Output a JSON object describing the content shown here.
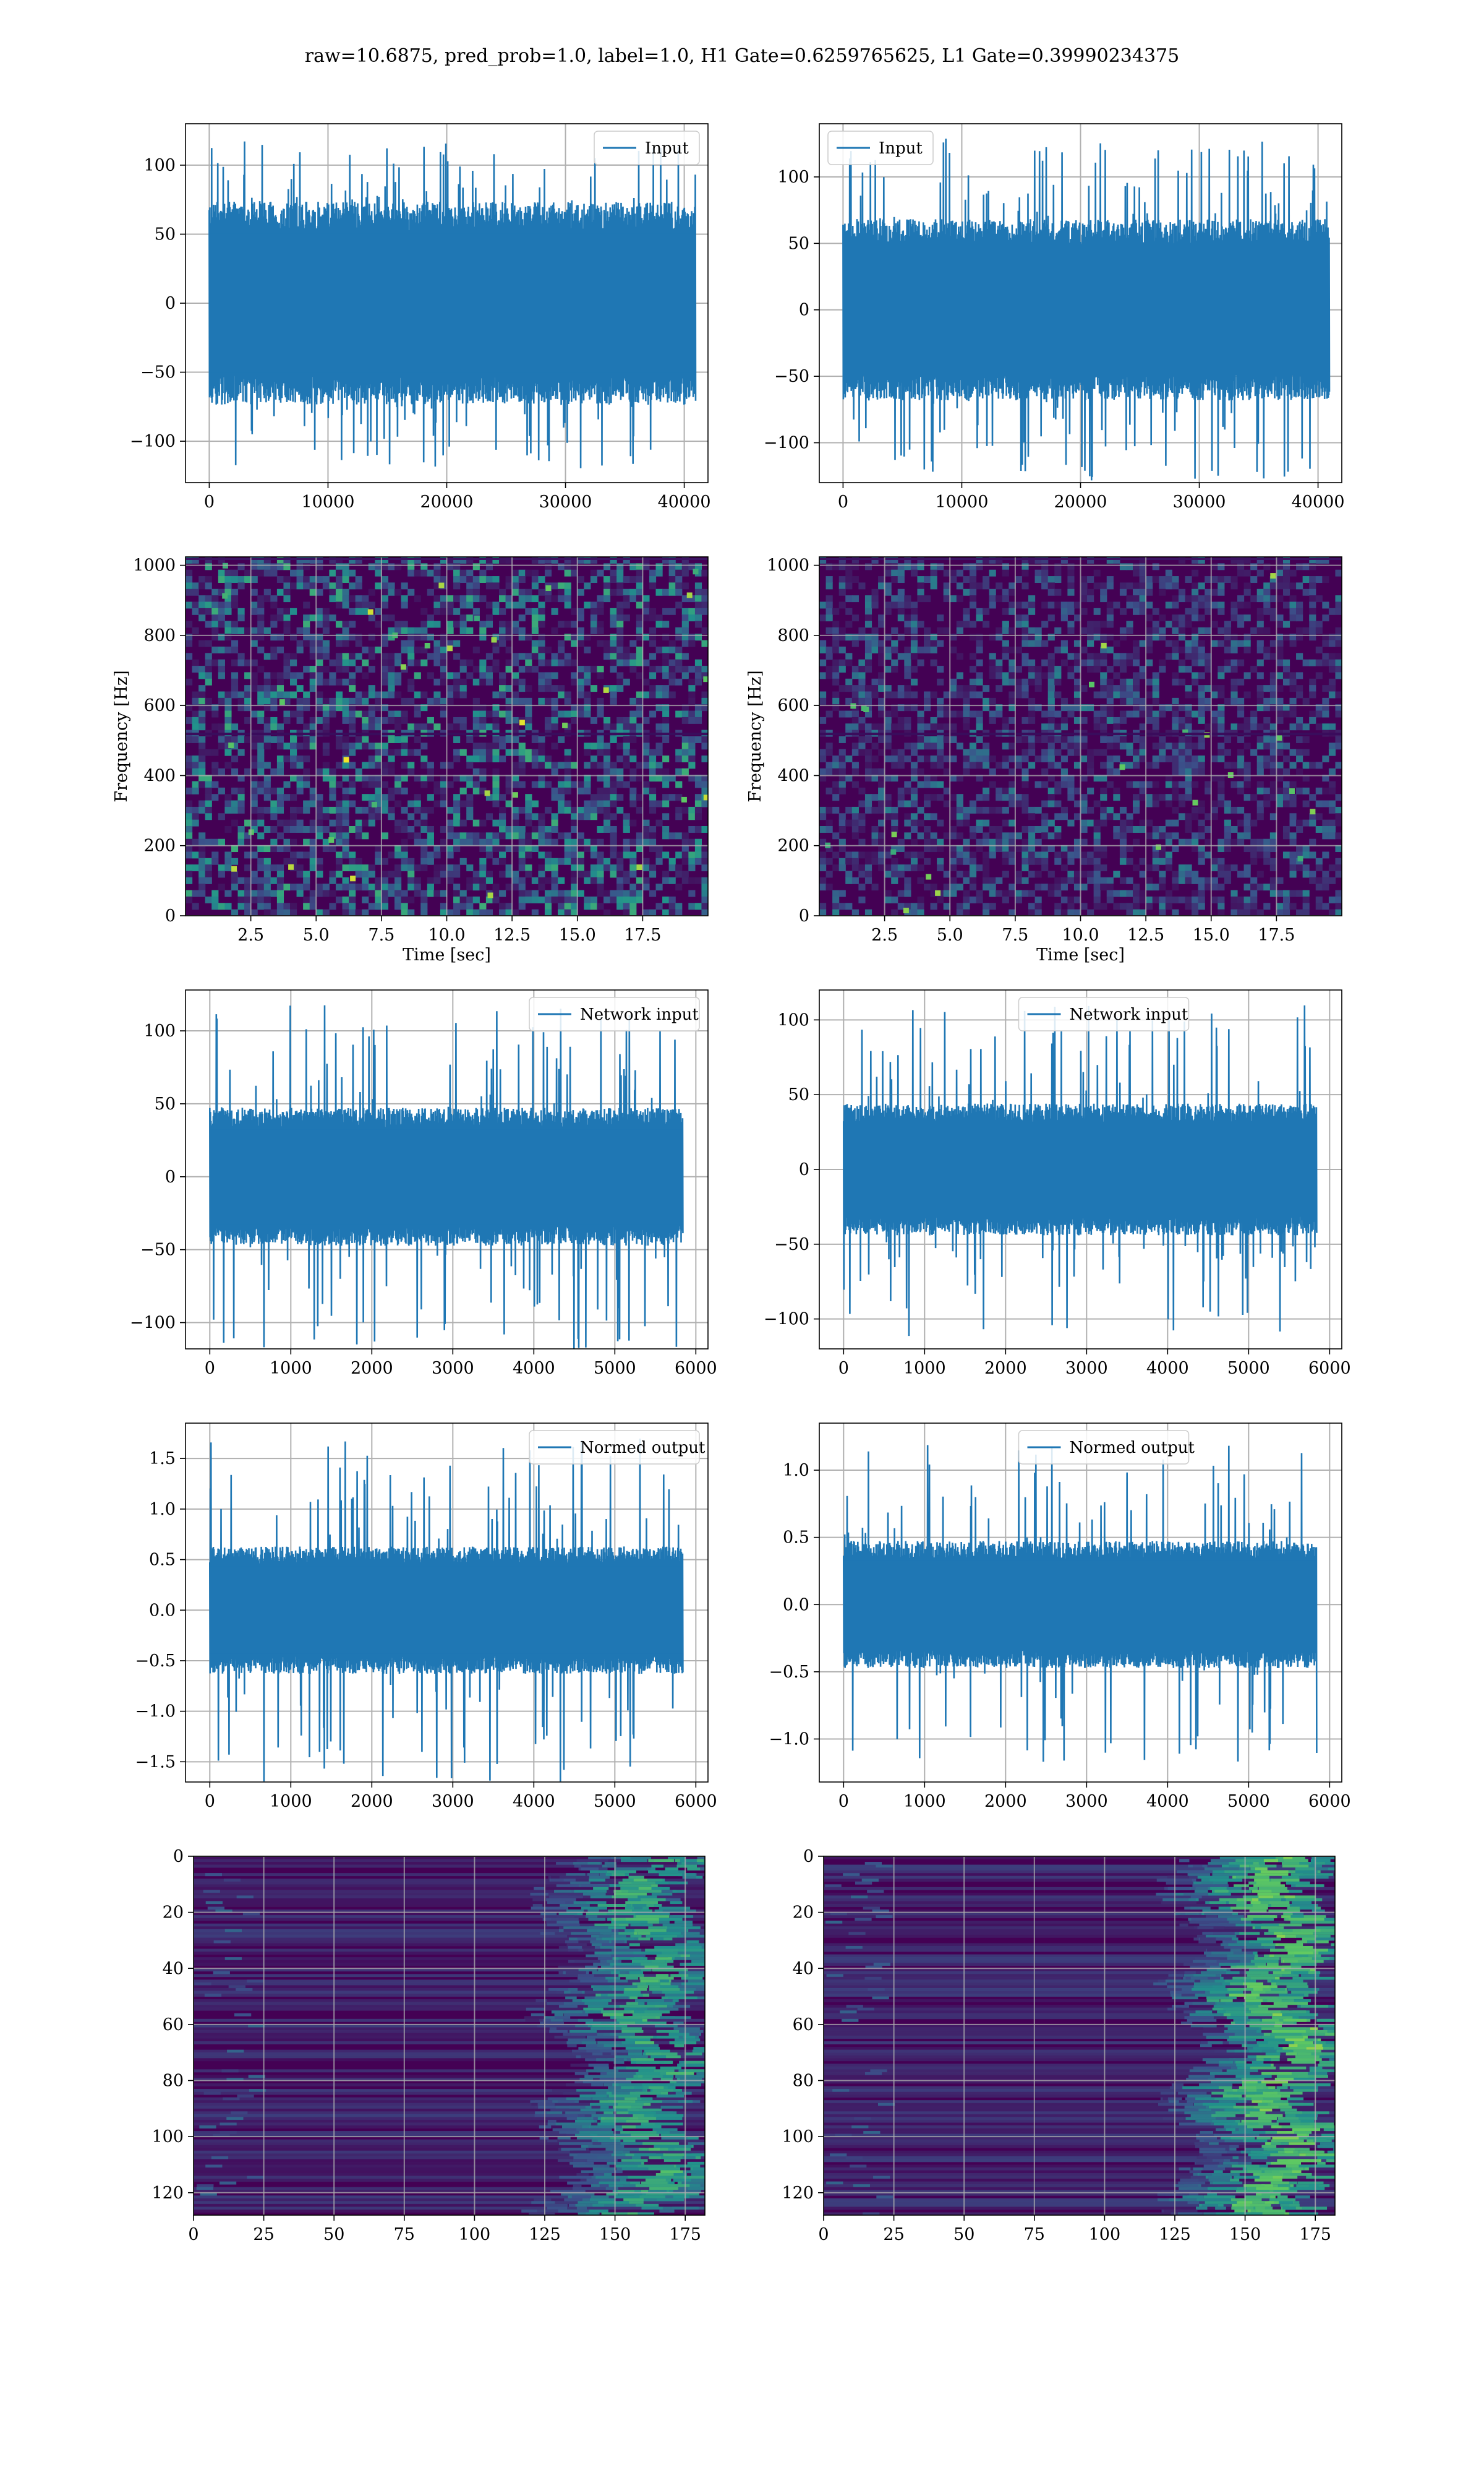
{
  "suptitle": "raw=10.6875, pred_prob=1.0, label=1.0, H1 Gate=0.6259765625, L1 Gate=0.39990234375",
  "colors": {
    "line": "#1f77b4",
    "grid": "#b0b0b0",
    "viridis_dark": "#440154",
    "viridis_mid": "#21918c",
    "viridis_bright": "#fde725"
  },
  "chart_data": [
    {
      "id": "h1-input",
      "type": "line",
      "legend": "Input",
      "xlim": [
        -2000,
        42000
      ],
      "ylim": [
        -130,
        130
      ],
      "xticks": [
        0,
        10000,
        20000,
        30000,
        40000
      ],
      "yticks": [
        -100,
        -50,
        0,
        50,
        100
      ],
      "xticklabels": [
        "0",
        "10000",
        "20000",
        "30000",
        "40000"
      ],
      "yticklabels": [
        "−100",
        "−50",
        "0",
        "50",
        "100"
      ],
      "xlabel": "",
      "ylabel": "",
      "legend_loc": "upper right",
      "signal": {
        "x_start": 0,
        "x_end": 40960,
        "envelope": 70,
        "peak": 120
      }
    },
    {
      "id": "l1-input",
      "type": "line",
      "legend": "Input",
      "xlim": [
        -2000,
        42000
      ],
      "ylim": [
        -130,
        140
      ],
      "xticks": [
        0,
        10000,
        20000,
        30000,
        40000
      ],
      "yticks": [
        -100,
        -50,
        0,
        50,
        100
      ],
      "xticklabels": [
        "0",
        "10000",
        "20000",
        "30000",
        "40000"
      ],
      "yticklabels": [
        "−100",
        "−50",
        "0",
        "50",
        "100"
      ],
      "xlabel": "",
      "ylabel": "",
      "legend_loc": "upper left",
      "signal": {
        "x_start": 0,
        "x_end": 40960,
        "envelope": 65,
        "peak": 130
      }
    },
    {
      "id": "h1-spectrogram",
      "type": "heatmap",
      "xlim": [
        0,
        20
      ],
      "ylim": [
        0,
        1024
      ],
      "xticks": [
        2.5,
        5,
        7.5,
        10,
        12.5,
        15,
        17.5
      ],
      "yticks": [
        0,
        200,
        400,
        600,
        800,
        1000
      ],
      "xticklabels": [
        "2.5",
        "5.0",
        "7.5",
        "10.0",
        "12.5",
        "15.0",
        "17.5"
      ],
      "yticklabels": [
        "0",
        "200",
        "400",
        "600",
        "800",
        "1000"
      ],
      "xlabel": "Time [sec]",
      "ylabel": "Frequency [Hz]",
      "texture": {
        "mode": "spectro",
        "intensity": 1.0
      }
    },
    {
      "id": "l1-spectrogram",
      "type": "heatmap",
      "xlim": [
        0,
        20
      ],
      "ylim": [
        0,
        1024
      ],
      "xticks": [
        2.5,
        5,
        7.5,
        10,
        12.5,
        15,
        17.5
      ],
      "yticks": [
        0,
        200,
        400,
        600,
        800,
        1000
      ],
      "xticklabels": [
        "2.5",
        "5.0",
        "7.5",
        "10.0",
        "12.5",
        "15.0",
        "17.5"
      ],
      "yticklabels": [
        "0",
        "200",
        "400",
        "600",
        "800",
        "1000"
      ],
      "xlabel": "Time [sec]",
      "ylabel": "Frequency [Hz]",
      "texture": {
        "mode": "spectro",
        "intensity": 0.7
      }
    },
    {
      "id": "h1-network-input",
      "type": "line",
      "legend": "Network input",
      "xlim": [
        -300,
        6150
      ],
      "ylim": [
        -118,
        128
      ],
      "xticks": [
        0,
        1000,
        2000,
        3000,
        4000,
        5000,
        6000
      ],
      "yticks": [
        -100,
        -50,
        0,
        50,
        100
      ],
      "xticklabels": [
        "0",
        "1000",
        "2000",
        "3000",
        "4000",
        "5000",
        "6000"
      ],
      "yticklabels": [
        "−100",
        "−50",
        "0",
        "50",
        "100"
      ],
      "xlabel": "",
      "ylabel": "",
      "legend_loc": "upper right",
      "signal": {
        "x_start": 0,
        "x_end": 5840,
        "envelope": 45,
        "peak": 118
      }
    },
    {
      "id": "l1-network-input",
      "type": "line",
      "legend": "Network input",
      "xlim": [
        -300,
        6150
      ],
      "ylim": [
        -120,
        120
      ],
      "xticks": [
        0,
        1000,
        2000,
        3000,
        4000,
        5000,
        6000
      ],
      "yticks": [
        -100,
        -50,
        0,
        50,
        100
      ],
      "xticklabels": [
        "0",
        "1000",
        "2000",
        "3000",
        "4000",
        "5000",
        "6000"
      ],
      "yticklabels": [
        "−100",
        "−50",
        "0",
        "50",
        "100"
      ],
      "xlabel": "",
      "ylabel": "",
      "legend_loc": "upper center",
      "signal": {
        "x_start": 0,
        "x_end": 5840,
        "envelope": 42,
        "peak": 112
      }
    },
    {
      "id": "h1-normed-output",
      "type": "line",
      "legend": "Normed output",
      "xlim": [
        -300,
        6150
      ],
      "ylim": [
        -1.7,
        1.85
      ],
      "xticks": [
        0,
        1000,
        2000,
        3000,
        4000,
        5000,
        6000
      ],
      "yticks": [
        -1.5,
        -1.0,
        -0.5,
        0.0,
        0.5,
        1.0,
        1.5
      ],
      "xticklabels": [
        "0",
        "1000",
        "2000",
        "3000",
        "4000",
        "5000",
        "6000"
      ],
      "yticklabels": [
        "−1.5",
        "−1.0",
        "−0.5",
        "0.0",
        "0.5",
        "1.0",
        "1.5"
      ],
      "xlabel": "",
      "ylabel": "",
      "legend_loc": "upper right",
      "signal": {
        "x_start": 0,
        "x_end": 5840,
        "envelope": 0.6,
        "peak": 1.7
      }
    },
    {
      "id": "l1-normed-output",
      "type": "line",
      "legend": "Normed output",
      "xlim": [
        -300,
        6150
      ],
      "ylim": [
        -1.32,
        1.35
      ],
      "xticks": [
        0,
        1000,
        2000,
        3000,
        4000,
        5000,
        6000
      ],
      "yticks": [
        -1.0,
        -0.5,
        0.0,
        0.5,
        1.0
      ],
      "xticklabels": [
        "0",
        "1000",
        "2000",
        "3000",
        "4000",
        "5000",
        "6000"
      ],
      "yticklabels": [
        "−1.0",
        "−0.5",
        "0.0",
        "0.5",
        "1.0"
      ],
      "xlabel": "",
      "ylabel": "",
      "legend_loc": "upper center",
      "signal": {
        "x_start": 0,
        "x_end": 5840,
        "envelope": 0.45,
        "peak": 1.2
      }
    },
    {
      "id": "h1-feature-map",
      "type": "heatmap",
      "xlim": [
        0,
        182
      ],
      "ylim": [
        128,
        0
      ],
      "xticks": [
        0,
        25,
        50,
        75,
        100,
        125,
        150,
        175
      ],
      "yticks": [
        0,
        20,
        40,
        60,
        80,
        100,
        120
      ],
      "xticklabels": [
        "0",
        "25",
        "50",
        "75",
        "100",
        "125",
        "150",
        "175"
      ],
      "yticklabels": [
        "0",
        "20",
        "40",
        "60",
        "80",
        "100",
        "120"
      ],
      "xlabel": "",
      "ylabel": "",
      "texture": {
        "mode": "feature",
        "intensity": 1.0
      }
    },
    {
      "id": "l1-feature-map",
      "type": "heatmap",
      "xlim": [
        0,
        182
      ],
      "ylim": [
        128,
        0
      ],
      "xticks": [
        0,
        25,
        50,
        75,
        100,
        125,
        150,
        175
      ],
      "yticks": [
        0,
        20,
        40,
        60,
        80,
        100,
        120
      ],
      "xticklabels": [
        "0",
        "25",
        "50",
        "75",
        "100",
        "125",
        "150",
        "175"
      ],
      "yticklabels": [
        "0",
        "20",
        "40",
        "60",
        "80",
        "100",
        "120"
      ],
      "xlabel": "",
      "ylabel": "",
      "texture": {
        "mode": "feature",
        "intensity": 1.2
      }
    }
  ]
}
